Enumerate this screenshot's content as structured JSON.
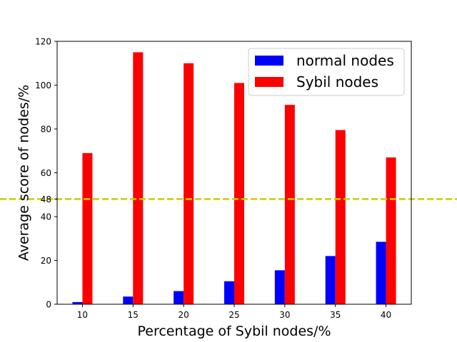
{
  "chart_data": {
    "type": "bar",
    "categories": [
      "10",
      "15",
      "20",
      "25",
      "30",
      "35",
      "40"
    ],
    "series": [
      {
        "name": "normal nodes",
        "color": "#0000ff",
        "values": [
          1,
          3.5,
          6,
          10.5,
          15.5,
          22,
          28.5
        ]
      },
      {
        "name": "Sybil nodes",
        "color": "#ff0000",
        "values": [
          69,
          115,
          110,
          101,
          91,
          79.5,
          67
        ]
      }
    ],
    "title": "",
    "xlabel": "Percentage of Sybil nodes/%",
    "ylabel": "Average score of nodes/%",
    "ylim": [
      0,
      120
    ],
    "yticks": [
      0,
      20,
      40,
      48,
      60,
      80,
      100,
      120
    ],
    "threshold": {
      "value": 48,
      "color": "#cccc00",
      "style": "dashed"
    },
    "legend_position": "top-right",
    "grid": false
  }
}
